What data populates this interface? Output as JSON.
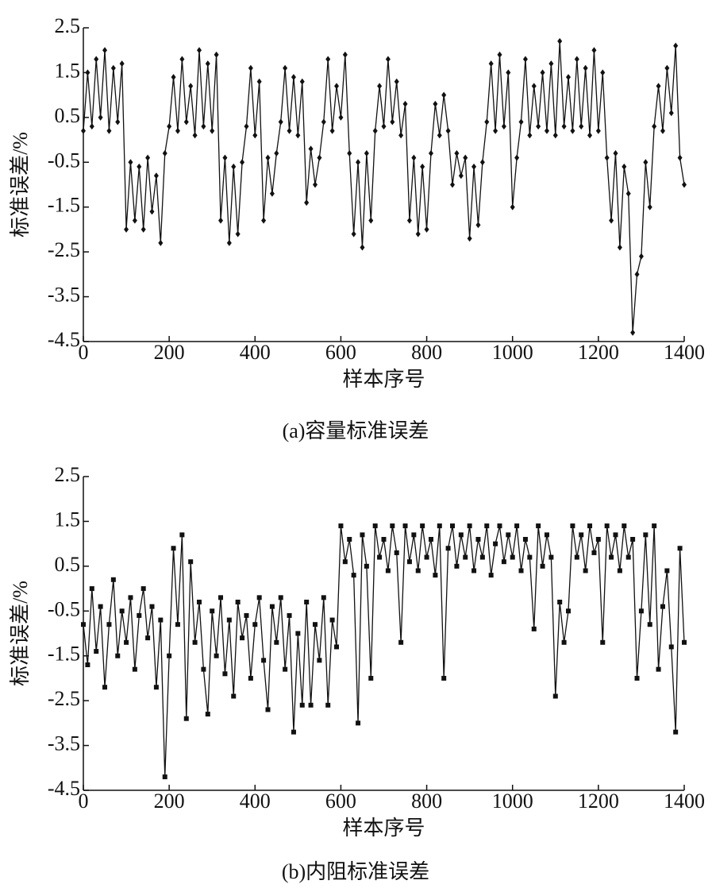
{
  "chart_data": [
    {
      "type": "line",
      "title": "(a)容量标准误差",
      "xlabel": "样本序号",
      "ylabel": "标准误差/%",
      "xlim": [
        0,
        1400
      ],
      "xticks": [
        0,
        200,
        400,
        600,
        800,
        1000,
        1200,
        1400
      ],
      "ylim": [
        -4.5,
        2.5
      ],
      "yticks": [
        -4.5,
        -3.5,
        -2.5,
        -1.5,
        -0.5,
        0.5,
        1.5,
        2.5
      ],
      "x": [
        0,
        10,
        20,
        30,
        40,
        50,
        60,
        70,
        80,
        90,
        100,
        110,
        120,
        130,
        140,
        150,
        160,
        170,
        180,
        190,
        200,
        210,
        220,
        230,
        240,
        250,
        260,
        270,
        280,
        290,
        300,
        310,
        320,
        330,
        340,
        350,
        360,
        370,
        380,
        390,
        400,
        410,
        420,
        430,
        440,
        450,
        460,
        470,
        480,
        490,
        500,
        510,
        520,
        530,
        540,
        550,
        560,
        570,
        580,
        590,
        600,
        610,
        620,
        630,
        640,
        650,
        660,
        670,
        680,
        690,
        700,
        710,
        720,
        730,
        740,
        750,
        760,
        770,
        780,
        790,
        800,
        810,
        820,
        830,
        840,
        850,
        860,
        870,
        880,
        890,
        900,
        910,
        920,
        930,
        940,
        950,
        960,
        970,
        980,
        990,
        1000,
        1010,
        1020,
        1030,
        1040,
        1050,
        1060,
        1070,
        1080,
        1090,
        1100,
        1110,
        1120,
        1130,
        1140,
        1150,
        1160,
        1170,
        1180,
        1190,
        1200,
        1210,
        1220,
        1230,
        1240,
        1250,
        1260,
        1270,
        1280,
        1290,
        1300,
        1310,
        1320,
        1330,
        1340,
        1350,
        1360,
        1370,
        1380,
        1390,
        1400
      ],
      "series": [
        {
          "color": "#111111",
          "marker": "diamond",
          "values": [
            0.2,
            1.5,
            0.3,
            1.8,
            0.5,
            2.0,
            0.2,
            1.6,
            0.4,
            1.7,
            -2.0,
            -0.5,
            -1.8,
            -0.6,
            -2.0,
            -0.4,
            -1.6,
            -0.8,
            -2.3,
            -0.3,
            0.3,
            1.4,
            0.2,
            1.8,
            0.4,
            1.2,
            0.1,
            2.0,
            0.3,
            1.7,
            0.2,
            1.9,
            -1.8,
            -0.4,
            -2.3,
            -0.6,
            -2.1,
            -0.5,
            0.3,
            1.6,
            0.1,
            1.3,
            -1.8,
            -0.4,
            -1.2,
            -0.3,
            0.4,
            1.6,
            0.2,
            1.4,
            0.1,
            1.3,
            -1.4,
            -0.2,
            -1.0,
            -0.4,
            0.4,
            1.8,
            0.2,
            1.2,
            0.5,
            1.9,
            -0.3,
            -2.1,
            -0.5,
            -2.4,
            -0.3,
            -1.8,
            0.2,
            1.2,
            0.3,
            1.8,
            0.4,
            1.3,
            0.1,
            0.8,
            -1.8,
            -0.4,
            -2.1,
            -0.6,
            -2.0,
            -0.3,
            0.8,
            0.1,
            1.0,
            0.2,
            -1.0,
            -0.3,
            -0.8,
            -0.4,
            -2.2,
            -0.6,
            -1.9,
            -0.5,
            0.4,
            1.7,
            0.2,
            1.9,
            0.3,
            1.5,
            -1.5,
            -0.4,
            0.4,
            1.8,
            0.1,
            1.2,
            0.3,
            1.5,
            0.2,
            1.7,
            0.1,
            2.2,
            0.3,
            1.4,
            0.2,
            1.8,
            0.3,
            1.6,
            0.1,
            2.0,
            0.2,
            1.5,
            -0.4,
            -1.8,
            -0.3,
            -2.4,
            -0.6,
            -1.2,
            -4.3,
            -3.0,
            -2.6,
            -0.5,
            -1.5,
            0.3,
            1.2,
            0.2,
            1.6,
            0.6,
            2.1,
            -0.4,
            -1.0
          ]
        }
      ]
    },
    {
      "type": "line",
      "title": "(b)内阻标准误差",
      "xlabel": "样本序号",
      "ylabel": "标准误差/%",
      "xlim": [
        0,
        1400
      ],
      "xticks": [
        0,
        200,
        400,
        600,
        800,
        1000,
        1200,
        1400
      ],
      "ylim": [
        -4.5,
        2.5
      ],
      "yticks": [
        -4.5,
        -3.5,
        -2.5,
        -1.5,
        -0.5,
        0.5,
        1.5,
        2.5
      ],
      "x": [
        0,
        10,
        20,
        30,
        40,
        50,
        60,
        70,
        80,
        90,
        100,
        110,
        120,
        130,
        140,
        150,
        160,
        170,
        180,
        190,
        200,
        210,
        220,
        230,
        240,
        250,
        260,
        270,
        280,
        290,
        300,
        310,
        320,
        330,
        340,
        350,
        360,
        370,
        380,
        390,
        400,
        410,
        420,
        430,
        440,
        450,
        460,
        470,
        480,
        490,
        500,
        510,
        520,
        530,
        540,
        550,
        560,
        570,
        580,
        590,
        600,
        610,
        620,
        630,
        640,
        650,
        660,
        670,
        680,
        690,
        700,
        710,
        720,
        730,
        740,
        750,
        760,
        770,
        780,
        790,
        800,
        810,
        820,
        830,
        840,
        850,
        860,
        870,
        880,
        890,
        900,
        910,
        920,
        930,
        940,
        950,
        960,
        970,
        980,
        990,
        1000,
        1010,
        1020,
        1030,
        1040,
        1050,
        1060,
        1070,
        1080,
        1090,
        1100,
        1110,
        1120,
        1130,
        1140,
        1150,
        1160,
        1170,
        1180,
        1190,
        1200,
        1210,
        1220,
        1230,
        1240,
        1250,
        1260,
        1270,
        1280,
        1290,
        1300,
        1310,
        1320,
        1330,
        1340,
        1350,
        1360,
        1370,
        1380,
        1390,
        1400
      ],
      "series": [
        {
          "color": "#111111",
          "marker": "square",
          "values": [
            -0.8,
            -1.7,
            0.0,
            -1.4,
            -0.4,
            -2.2,
            -0.8,
            0.2,
            -1.5,
            -0.5,
            -1.2,
            -0.2,
            -1.8,
            -0.6,
            0.0,
            -1.1,
            -0.4,
            -2.2,
            -0.7,
            -4.2,
            -1.5,
            0.9,
            -0.8,
            1.2,
            -2.9,
            0.6,
            -1.2,
            -0.3,
            -1.8,
            -2.8,
            -0.5,
            -1.5,
            -0.2,
            -1.9,
            -0.7,
            -2.4,
            -0.3,
            -1.1,
            -0.6,
            -2.0,
            -0.8,
            -0.2,
            -1.6,
            -2.7,
            -0.4,
            -1.2,
            -0.2,
            -1.8,
            -0.6,
            -3.2,
            -1.0,
            -2.6,
            -0.3,
            -2.6,
            -0.8,
            -1.6,
            -0.2,
            -2.6,
            -0.7,
            -1.3,
            1.4,
            0.6,
            1.1,
            0.3,
            -3.0,
            1.2,
            0.5,
            -2.0,
            1.4,
            0.7,
            1.1,
            0.4,
            1.4,
            0.8,
            -1.2,
            1.4,
            0.6,
            1.2,
            0.4,
            1.4,
            0.7,
            1.1,
            0.3,
            1.4,
            -2.0,
            0.9,
            1.4,
            0.5,
            1.2,
            0.7,
            1.4,
            0.4,
            1.1,
            0.7,
            1.4,
            0.3,
            1.0,
            1.4,
            0.6,
            1.2,
            0.7,
            1.4,
            0.4,
            1.1,
            0.7,
            -0.9,
            1.4,
            0.5,
            1.2,
            0.7,
            -2.4,
            -0.3,
            -1.2,
            -0.5,
            1.4,
            0.7,
            1.2,
            0.4,
            1.4,
            0.8,
            1.1,
            -1.2,
            1.4,
            0.7,
            1.2,
            0.4,
            1.4,
            0.7,
            1.1,
            -2.0,
            -0.5,
            1.2,
            -0.8,
            1.4,
            -1.8,
            -0.4,
            0.4,
            -1.3,
            -3.2,
            0.9,
            -1.2
          ]
        }
      ]
    }
  ]
}
